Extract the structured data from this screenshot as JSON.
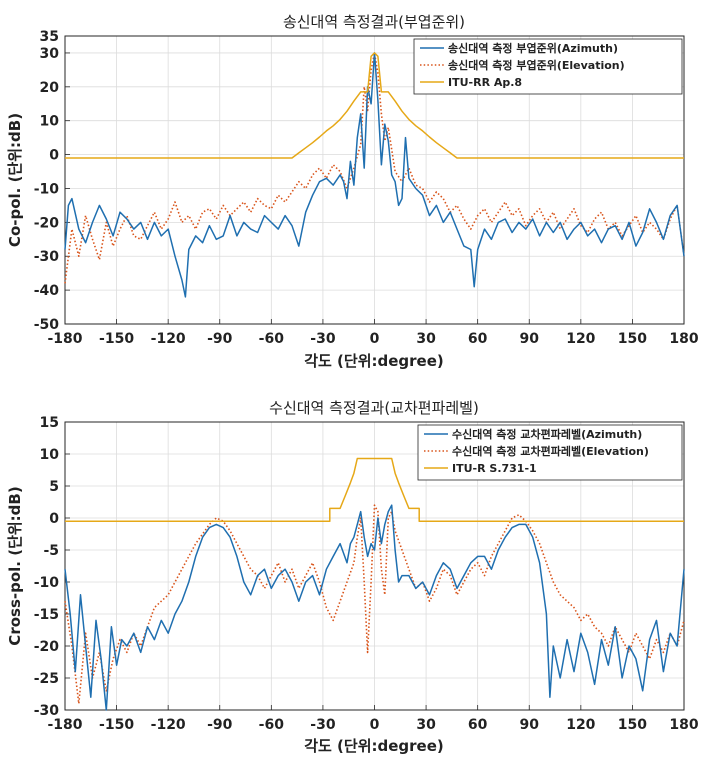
{
  "chart_data": [
    {
      "type": "line",
      "title": "송신대역 측정결과(부엽준위)",
      "xlabel": "각도 (단위:degree)",
      "ylabel": "Co-pol. (단위:dB)",
      "xlim": [
        -180,
        180
      ],
      "ylim": [
        -50,
        35
      ],
      "xticks": [
        -180,
        -150,
        -120,
        -90,
        -60,
        -30,
        0,
        30,
        60,
        90,
        120,
        150,
        180
      ],
      "yticks": [
        -50,
        -40,
        -30,
        -20,
        -10,
        0,
        10,
        20,
        30,
        35
      ],
      "grid": true,
      "legend_position": "top-right",
      "series": [
        {
          "name": "송신대역 측정 부엽준위(Azimuth)",
          "color": "#1f6fb0",
          "style": "solid",
          "x": [
            -180,
            -178,
            -176,
            -172,
            -168,
            -164,
            -160,
            -156,
            -152,
            -148,
            -144,
            -140,
            -136,
            -132,
            -128,
            -124,
            -120,
            -116,
            -112,
            -110,
            -108,
            -104,
            -100,
            -96,
            -92,
            -88,
            -84,
            -80,
            -76,
            -72,
            -68,
            -64,
            -60,
            -56,
            -52,
            -48,
            -44,
            -40,
            -36,
            -32,
            -28,
            -24,
            -20,
            -18,
            -16,
            -14,
            -12,
            -10,
            -8,
            -6,
            -4,
            -2,
            0,
            2,
            4,
            6,
            8,
            10,
            12,
            14,
            16,
            18,
            20,
            24,
            28,
            32,
            36,
            40,
            44,
            48,
            52,
            56,
            58,
            60,
            64,
            68,
            72,
            76,
            80,
            84,
            88,
            92,
            96,
            100,
            104,
            108,
            112,
            116,
            120,
            124,
            128,
            132,
            136,
            140,
            144,
            148,
            152,
            156,
            160,
            164,
            168,
            172,
            176,
            180
          ],
          "values": [
            -28,
            -15,
            -13,
            -22,
            -26,
            -20,
            -15,
            -19,
            -24,
            -17,
            -19,
            -22,
            -20,
            -25,
            -20,
            -24,
            -22,
            -30,
            -37,
            -42,
            -28,
            -24,
            -26,
            -21,
            -25,
            -24,
            -18,
            -24,
            -20,
            -22,
            -23,
            -18,
            -20,
            -22,
            -18,
            -21,
            -27,
            -17,
            -12,
            -8,
            -7,
            -9,
            -6,
            -8,
            -13,
            -2,
            -9,
            5,
            12,
            -4,
            20,
            15,
            30,
            16,
            -3,
            9,
            4,
            -6,
            -8,
            -15,
            -13,
            5,
            -7,
            -10,
            -12,
            -18,
            -15,
            -20,
            -17,
            -22,
            -27,
            -28,
            -39,
            -28,
            -22,
            -25,
            -20,
            -19,
            -23,
            -20,
            -22,
            -19,
            -24,
            -20,
            -23,
            -20,
            -25,
            -22,
            -20,
            -24,
            -22,
            -26,
            -22,
            -21,
            -25,
            -20,
            -27,
            -23,
            -16,
            -20,
            -25,
            -18,
            -15,
            -30
          ]
        },
        {
          "name": "송신대역 측정 부엽준위(Elevation)",
          "color": "#d9541a",
          "style": "dotted",
          "x": [
            -180,
            -176,
            -172,
            -168,
            -164,
            -160,
            -156,
            -152,
            -148,
            -144,
            -140,
            -136,
            -132,
            -128,
            -124,
            -120,
            -116,
            -112,
            -108,
            -104,
            -100,
            -96,
            -92,
            -88,
            -84,
            -80,
            -76,
            -72,
            -68,
            -64,
            -60,
            -56,
            -52,
            -48,
            -44,
            -40,
            -36,
            -32,
            -28,
            -24,
            -20,
            -16,
            -12,
            -8,
            -6,
            -4,
            -2,
            0,
            2,
            4,
            6,
            8,
            12,
            16,
            20,
            24,
            28,
            32,
            36,
            40,
            44,
            48,
            52,
            56,
            60,
            64,
            68,
            72,
            76,
            80,
            84,
            88,
            92,
            96,
            100,
            104,
            108,
            112,
            116,
            120,
            124,
            128,
            132,
            136,
            140,
            144,
            148,
            152,
            156,
            160,
            164,
            168,
            172,
            176,
            180
          ],
          "values": [
            -38,
            -22,
            -30,
            -18,
            -25,
            -31,
            -20,
            -27,
            -22,
            -18,
            -24,
            -25,
            -21,
            -17,
            -22,
            -19,
            -14,
            -20,
            -18,
            -22,
            -17,
            -16,
            -19,
            -15,
            -18,
            -16,
            -14,
            -17,
            -13,
            -15,
            -16,
            -12,
            -14,
            -11,
            -8,
            -10,
            -6,
            -4,
            -7,
            -3,
            -5,
            -10,
            -4,
            3,
            20,
            13,
            25,
            30,
            24,
            12,
            4,
            8,
            -5,
            -8,
            -4,
            -9,
            -10,
            -14,
            -11,
            -13,
            -17,
            -15,
            -19,
            -22,
            -18,
            -16,
            -20,
            -17,
            -14,
            -18,
            -16,
            -21,
            -18,
            -16,
            -20,
            -17,
            -22,
            -19,
            -16,
            -21,
            -23,
            -19,
            -17,
            -22,
            -20,
            -24,
            -21,
            -18,
            -23,
            -20,
            -22,
            -25,
            -19,
            -15,
            -30
          ]
        },
        {
          "name": "ITU-RR Ap.8",
          "color": "#e6a817",
          "style": "solid",
          "x": [
            -180,
            -48,
            -44,
            -40,
            -36,
            -32,
            -28,
            -24,
            -20,
            -16,
            -12,
            -8,
            -4,
            -2,
            0,
            2,
            4,
            8,
            12,
            16,
            20,
            24,
            28,
            32,
            36,
            40,
            44,
            48,
            180
          ],
          "values": [
            -1,
            -1,
            0.5,
            2,
            3.5,
            5.2,
            7,
            8.5,
            10.4,
            12.8,
            15.8,
            18.5,
            18.5,
            29,
            30,
            29,
            18.5,
            18.5,
            15.8,
            12.8,
            10.4,
            8.5,
            7,
            5.2,
            3.5,
            2,
            0.5,
            -1,
            -1
          ]
        }
      ]
    },
    {
      "type": "line",
      "title": "수신대역 측정결과(교차편파레벨)",
      "xlabel": "각도 (단위:degree)",
      "ylabel": "Cross-pol. (단위:dB)",
      "xlim": [
        -180,
        180
      ],
      "ylim": [
        -30,
        15
      ],
      "xticks": [
        -180,
        -150,
        -120,
        -90,
        -60,
        -30,
        0,
        30,
        60,
        90,
        120,
        150,
        180
      ],
      "yticks": [
        -30,
        -25,
        -20,
        -15,
        -10,
        -5,
        0,
        5,
        10,
        15
      ],
      "grid": true,
      "legend_position": "top-right",
      "series": [
        {
          "name": "수신대역 측정 교차편파레벨(Azimuth)",
          "color": "#1f6fb0",
          "style": "solid",
          "x": [
            -180,
            -177,
            -174,
            -171,
            -168,
            -165,
            -162,
            -159,
            -156,
            -153,
            -150,
            -147,
            -144,
            -140,
            -136,
            -132,
            -128,
            -124,
            -120,
            -116,
            -112,
            -108,
            -104,
            -100,
            -96,
            -92,
            -88,
            -84,
            -80,
            -76,
            -72,
            -68,
            -64,
            -60,
            -56,
            -52,
            -48,
            -44,
            -40,
            -36,
            -32,
            -28,
            -24,
            -20,
            -16,
            -14,
            -12,
            -10,
            -8,
            -6,
            -4,
            -2,
            0,
            2,
            4,
            6,
            8,
            10,
            12,
            14,
            16,
            20,
            24,
            28,
            32,
            36,
            40,
            44,
            48,
            52,
            56,
            60,
            64,
            68,
            72,
            76,
            80,
            84,
            88,
            92,
            96,
            100,
            102,
            104,
            108,
            112,
            116,
            120,
            124,
            128,
            132,
            136,
            140,
            144,
            148,
            152,
            156,
            160,
            164,
            168,
            172,
            176,
            180
          ],
          "values": [
            -8,
            -15,
            -24,
            -12,
            -20,
            -28,
            -16,
            -22,
            -30,
            -17,
            -23,
            -19,
            -20,
            -18,
            -21,
            -17,
            -19,
            -16,
            -18,
            -15,
            -13,
            -10,
            -6,
            -3,
            -1.5,
            -1,
            -1.5,
            -3,
            -6,
            -10,
            -12,
            -9,
            -8,
            -11,
            -9,
            -8,
            -10,
            -13,
            -10,
            -9,
            -12,
            -8,
            -6,
            -4,
            -7,
            -4,
            -3,
            -1,
            1,
            -3,
            -6,
            -4,
            -5,
            0,
            -4,
            -1,
            1,
            2,
            -5,
            -10,
            -9,
            -9,
            -11,
            -10,
            -12,
            -9,
            -7,
            -8,
            -11,
            -9,
            -7,
            -6,
            -6,
            -8,
            -5,
            -3,
            -1.5,
            -1,
            -1,
            -3,
            -7,
            -15,
            -28,
            -20,
            -25,
            -19,
            -24,
            -18,
            -21,
            -26,
            -19,
            -23,
            -17,
            -25,
            -20,
            -22,
            -27,
            -19,
            -16,
            -24,
            -18,
            -20,
            -8
          ]
        },
        {
          "name": "수신대역 측정 교차편파레벨(Elevation)",
          "color": "#d9541a",
          "style": "dotted",
          "x": [
            -180,
            -176,
            -172,
            -168,
            -164,
            -160,
            -156,
            -152,
            -148,
            -144,
            -140,
            -136,
            -132,
            -128,
            -124,
            -120,
            -116,
            -112,
            -108,
            -104,
            -100,
            -96,
            -92,
            -88,
            -84,
            -80,
            -76,
            -72,
            -68,
            -64,
            -60,
            -56,
            -52,
            -48,
            -44,
            -40,
            -36,
            -32,
            -28,
            -24,
            -20,
            -16,
            -12,
            -10,
            -8,
            -6,
            -4,
            -2,
            0,
            2,
            4,
            6,
            8,
            10,
            12,
            16,
            20,
            24,
            28,
            32,
            36,
            40,
            44,
            48,
            52,
            56,
            60,
            64,
            68,
            72,
            76,
            80,
            84,
            88,
            92,
            96,
            100,
            104,
            108,
            112,
            116,
            120,
            124,
            128,
            132,
            136,
            140,
            144,
            148,
            152,
            156,
            160,
            164,
            168,
            172,
            176,
            180
          ],
          "values": [
            -13,
            -20,
            -29,
            -18,
            -25,
            -21,
            -27,
            -22,
            -19,
            -21,
            -18,
            -20,
            -17,
            -14,
            -13,
            -12,
            -10,
            -8,
            -6,
            -4,
            -2.5,
            -1,
            0,
            -0.5,
            -2,
            -4,
            -6,
            -8,
            -9,
            -11,
            -9,
            -7,
            -10,
            -8,
            -11,
            -9,
            -7,
            -10,
            -14,
            -16,
            -13,
            -10,
            -7,
            -3,
            0,
            -10,
            -21,
            -10,
            2,
            1,
            -8,
            -12,
            0,
            1,
            -2,
            -5,
            -8,
            -11,
            -10,
            -13,
            -11,
            -8,
            -9,
            -12,
            -10,
            -8,
            -7,
            -9,
            -6,
            -4,
            -2,
            0,
            0.5,
            -0.5,
            -2,
            -4,
            -7,
            -10,
            -12,
            -13,
            -14,
            -16,
            -15,
            -17,
            -18,
            -20,
            -17,
            -19,
            -21,
            -18,
            -20,
            -22,
            -19,
            -21,
            -18,
            -20,
            -16
          ]
        },
        {
          "name": "ITU-R S.731-1",
          "color": "#e6a817",
          "style": "solid",
          "x": [
            -180,
            -26,
            -26,
            -20,
            -17,
            -14,
            -12,
            -10,
            -7,
            -4,
            0,
            4,
            7,
            10,
            12,
            14,
            17,
            20,
            26,
            26,
            180
          ],
          "values": [
            -0.5,
            -0.5,
            1.5,
            1.5,
            3.5,
            5.5,
            7,
            9.3,
            9.3,
            9.3,
            9.3,
            9.3,
            9.3,
            9.3,
            7,
            5.5,
            3.5,
            1.5,
            1.5,
            -0.5,
            -0.5
          ]
        }
      ]
    }
  ]
}
